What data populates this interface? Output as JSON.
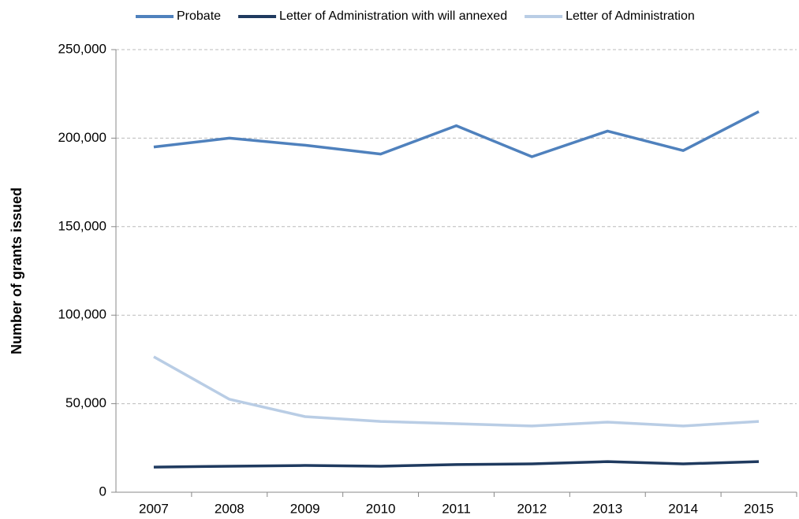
{
  "chart_data": {
    "type": "line",
    "y_label": "Number of grants issued",
    "categories": [
      "2007",
      "2008",
      "2009",
      "2010",
      "2011",
      "2012",
      "2013",
      "2014",
      "2015"
    ],
    "series": [
      {
        "name": "Probate",
        "color": "#4f81bd",
        "values": [
          195000,
          200000,
          196000,
          191000,
          207000,
          189500,
          204000,
          193000,
          215000
        ]
      },
      {
        "name": "Letter of Administration with will annexed",
        "color": "#1f3a5f",
        "values": [
          14200,
          14700,
          15100,
          14700,
          15600,
          16000,
          17300,
          16000,
          17300
        ]
      },
      {
        "name": "Letter of Administration",
        "color": "#b9cde5",
        "values": [
          76500,
          52500,
          42700,
          40000,
          38700,
          37400,
          39600,
          37400,
          40000
        ]
      }
    ],
    "ylim": [
      0,
      250000
    ],
    "yticks": [
      0,
      {
        "value": 50000,
        "label": "50,000"
      },
      {
        "value": 100000,
        "label": "100,000"
      },
      {
        "value": 150000,
        "label": "150,000"
      },
      {
        "value": 200000,
        "label": "200,000"
      },
      {
        "value": 250000,
        "label": "250,000"
      }
    ],
    "grid": true,
    "legend": "top"
  }
}
